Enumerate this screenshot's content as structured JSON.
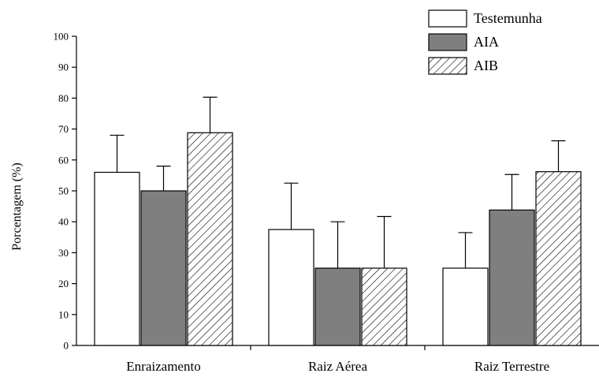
{
  "chart_data": {
    "type": "bar",
    "categories": [
      "Enraizamento",
      "Raiz Aérea",
      "Raiz Terrestre"
    ],
    "series": [
      {
        "name": "Testemunha",
        "values": [
          56,
          37.5,
          25
        ],
        "errors": [
          12,
          15,
          11.5
        ],
        "fill": "#ffffff"
      },
      {
        "name": "AIA",
        "values": [
          50,
          25,
          43.8
        ],
        "errors": [
          8,
          15,
          11.5
        ],
        "fill": "#7f7f7f"
      },
      {
        "name": "AIB",
        "values": [
          68.8,
          25,
          56.2
        ],
        "errors": [
          11.5,
          16.7,
          10
        ],
        "fill": "hatch"
      }
    ],
    "xlabel": "",
    "ylabel": "Porcentagem (%)",
    "ylim": [
      0,
      100
    ],
    "yticks": [
      0,
      10,
      20,
      30,
      40,
      50,
      60,
      70,
      80,
      90,
      100
    ],
    "grid": false,
    "legend": "top-right",
    "error_bars": "upper"
  }
}
